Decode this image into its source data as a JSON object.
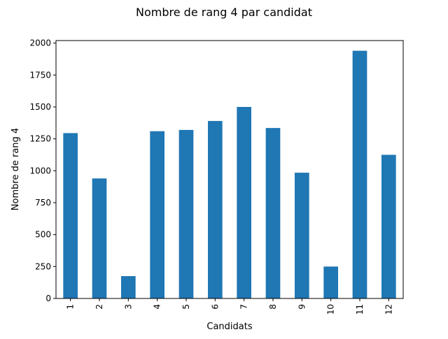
{
  "chart_data": {
    "type": "bar",
    "title": "Nombre de rang 4 par candidat",
    "xlabel": "Candidats",
    "ylabel": "Nombre de rang 4",
    "categories": [
      "1",
      "2",
      "3",
      "4",
      "5",
      "6",
      "7",
      "8",
      "9",
      "10",
      "11",
      "12"
    ],
    "values": [
      1295,
      940,
      175,
      1310,
      1320,
      1390,
      1500,
      1335,
      985,
      250,
      1940,
      1125
    ],
    "ylim": [
      0,
      2020
    ],
    "yticks": [
      0,
      250,
      500,
      750,
      1000,
      1250,
      1500,
      1750,
      2000
    ],
    "bar_color": "#1f77b4",
    "grid": false,
    "legend": "none"
  }
}
